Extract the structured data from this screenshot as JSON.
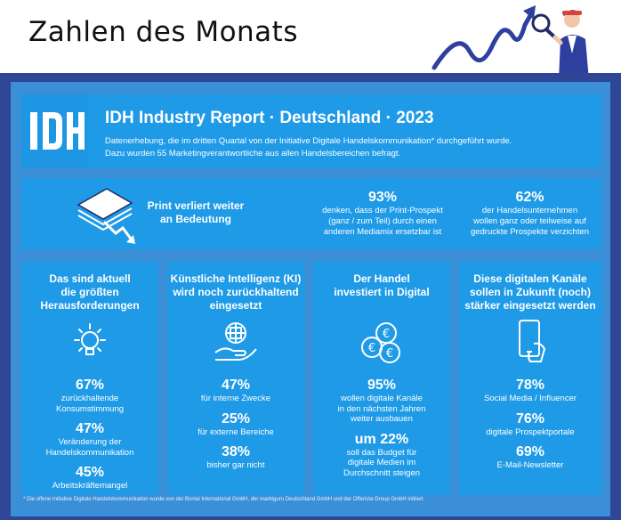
{
  "title": "Zahlen des Monats",
  "header": {
    "logo_text": "IDH",
    "report_title": "IDH Industry Report · Deutschland · 2023",
    "subtitle_line1": "Datenerhebung, die im dritten Quartal von der Initiative Digitale Handelskommunikation* durchgeführt wurde.",
    "subtitle_line2": "Dazu wurden 55 Marketingverantwortliche aus allen Handelsbereichen befragt."
  },
  "print_section": {
    "label_line1": "Print verliert weiter",
    "label_line2": "an Bedeutung",
    "stat1": {
      "pct": "93%",
      "desc": [
        "denken, dass der Print-Prospekt",
        "(ganz / zum Teil) durch einen",
        "anderen Mediamix ersetzbar ist"
      ]
    },
    "stat2": {
      "pct": "62%",
      "desc": [
        "der Handelsunternehmen",
        "wollen ganz oder teilweise auf",
        "gedruckte Prospekte verzichten"
      ]
    }
  },
  "cards": [
    {
      "title": [
        "Das sind aktuell",
        "die größten",
        "Herausforderungen"
      ],
      "icon": "lightbulb-icon",
      "stats": [
        {
          "pct": "67%",
          "lbl": [
            "zurückhaltende",
            "Konsumstimmung"
          ]
        },
        {
          "pct": "47%",
          "lbl": [
            "Veränderung der",
            "Handelskommunikation"
          ]
        },
        {
          "pct": "45%",
          "lbl": [
            "Arbeitskräftemangel"
          ]
        }
      ]
    },
    {
      "title": [
        "Künstliche Intelligenz (KI)",
        "wird noch zurückhaltend",
        "eingesetzt"
      ],
      "icon": "ai-hand-icon",
      "stats": [
        {
          "pct": "47%",
          "lbl": [
            "für interne Zwecke"
          ]
        },
        {
          "pct": "25%",
          "lbl": [
            "für externe Bereiche"
          ]
        },
        {
          "pct": "38%",
          "lbl": [
            "bisher gar nicht"
          ]
        }
      ]
    },
    {
      "title": [
        "Der Handel",
        "investiert in Digital"
      ],
      "icon": "euro-coins-icon",
      "stats": [
        {
          "pct": "95%",
          "lbl": [
            "wollen digitale Kanäle",
            "in den nächsten Jahren",
            "weiter ausbauen"
          ]
        },
        {
          "pct": "um 22%",
          "lbl": [
            "soll das Budget für",
            "digitale Medien im",
            "Durchschnitt steigen"
          ]
        }
      ]
    },
    {
      "title": [
        "Diese digitalen Kanäle",
        "sollen in Zukunft (noch)",
        "stärker eingesetzt werden"
      ],
      "icon": "smartphone-icon",
      "stats": [
        {
          "pct": "78%",
          "lbl": [
            "Social Media / Influencer"
          ]
        },
        {
          "pct": "76%",
          "lbl": [
            "digitale Prospektportale"
          ]
        },
        {
          "pct": "69%",
          "lbl": [
            "E-Mail-Newsletter"
          ]
        }
      ]
    }
  ],
  "footnote": "* Die offene Initiative Digitale Handelskommunikation wurde von der Bonial International GmbH, der marktguru Deutschland GmbH und der Offerista Group GmbH initiiert.",
  "colors": {
    "frame": "#2f4596",
    "canvas": "#3b8fd6",
    "box": "#1e9ae7",
    "accent": "#2f3fa0"
  }
}
